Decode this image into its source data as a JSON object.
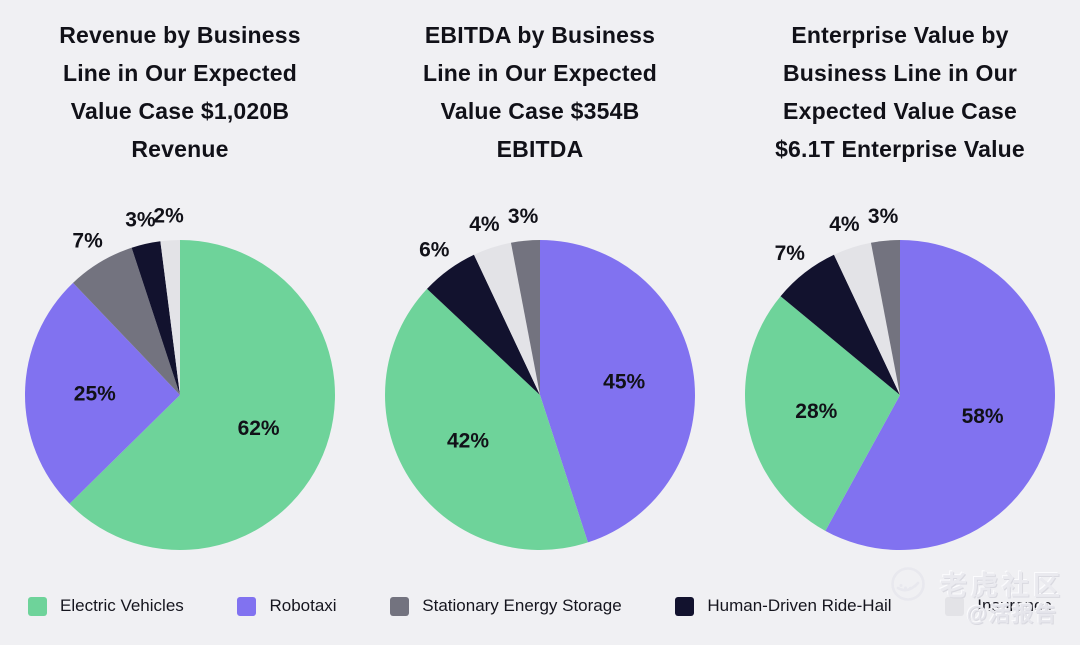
{
  "page": {
    "background": "#f0f0f3",
    "text_color": "#111118"
  },
  "colors": {
    "Electric Vehicles": "#6ed39a",
    "Robotaxi": "#8172f0",
    "Stationary Energy Storage": "#73737f",
    "Human-Driven Ride-Hail": "#12122e",
    "Insurance": "#e3e3e7"
  },
  "chart_data": [
    {
      "type": "pie",
      "title": "Revenue by Business Line in Our Expected Value Case $1,020B Revenue",
      "start_angle_deg": 0,
      "direction": "clockwise",
      "value_format": "percent",
      "slices": [
        {
          "label": "Electric Vehicles",
          "value": 62
        },
        {
          "label": "Robotaxi",
          "value": 25
        },
        {
          "label": "Stationary Energy Storage",
          "value": 7
        },
        {
          "label": "Human-Driven Ride-Hail",
          "value": 3
        },
        {
          "label": "Insurance",
          "value": 2
        }
      ]
    },
    {
      "type": "pie",
      "title": "EBITDA by Business Line in Our Expected Value Case $354B EBITDA",
      "start_angle_deg": 0,
      "direction": "clockwise",
      "value_format": "percent",
      "slices": [
        {
          "label": "Robotaxi",
          "value": 45
        },
        {
          "label": "Electric Vehicles",
          "value": 42
        },
        {
          "label": "Human-Driven Ride-Hail",
          "value": 6
        },
        {
          "label": "Insurance",
          "value": 4
        },
        {
          "label": "Stationary Energy Storage",
          "value": 3
        }
      ]
    },
    {
      "type": "pie",
      "title": "Enterprise Value by Business Line in Our Expected Value Case $6.1T Enterprise Value",
      "start_angle_deg": 0,
      "direction": "clockwise",
      "value_format": "percent",
      "slices": [
        {
          "label": "Robotaxi",
          "value": 58
        },
        {
          "label": "Electric Vehicles",
          "value": 28
        },
        {
          "label": "Human-Driven Ride-Hail",
          "value": 7
        },
        {
          "label": "Insurance",
          "value": 4
        },
        {
          "label": "Stationary Energy Storage",
          "value": 3
        }
      ]
    }
  ],
  "legend": {
    "items": [
      {
        "label": "Electric Vehicles",
        "color": "#6ed39a"
      },
      {
        "label": "Robotaxi",
        "color": "#8172f0"
      },
      {
        "label": "Stationary Energy Storage",
        "color": "#73737f"
      },
      {
        "label": "Human-Driven Ride-Hail",
        "color": "#12122e"
      },
      {
        "label": "Insurance",
        "color": "#e3e3e7"
      }
    ]
  },
  "watermark": {
    "brand": "老虎社区",
    "sub": "@活报告",
    "logo": "tiger-paw-circle-icon"
  }
}
